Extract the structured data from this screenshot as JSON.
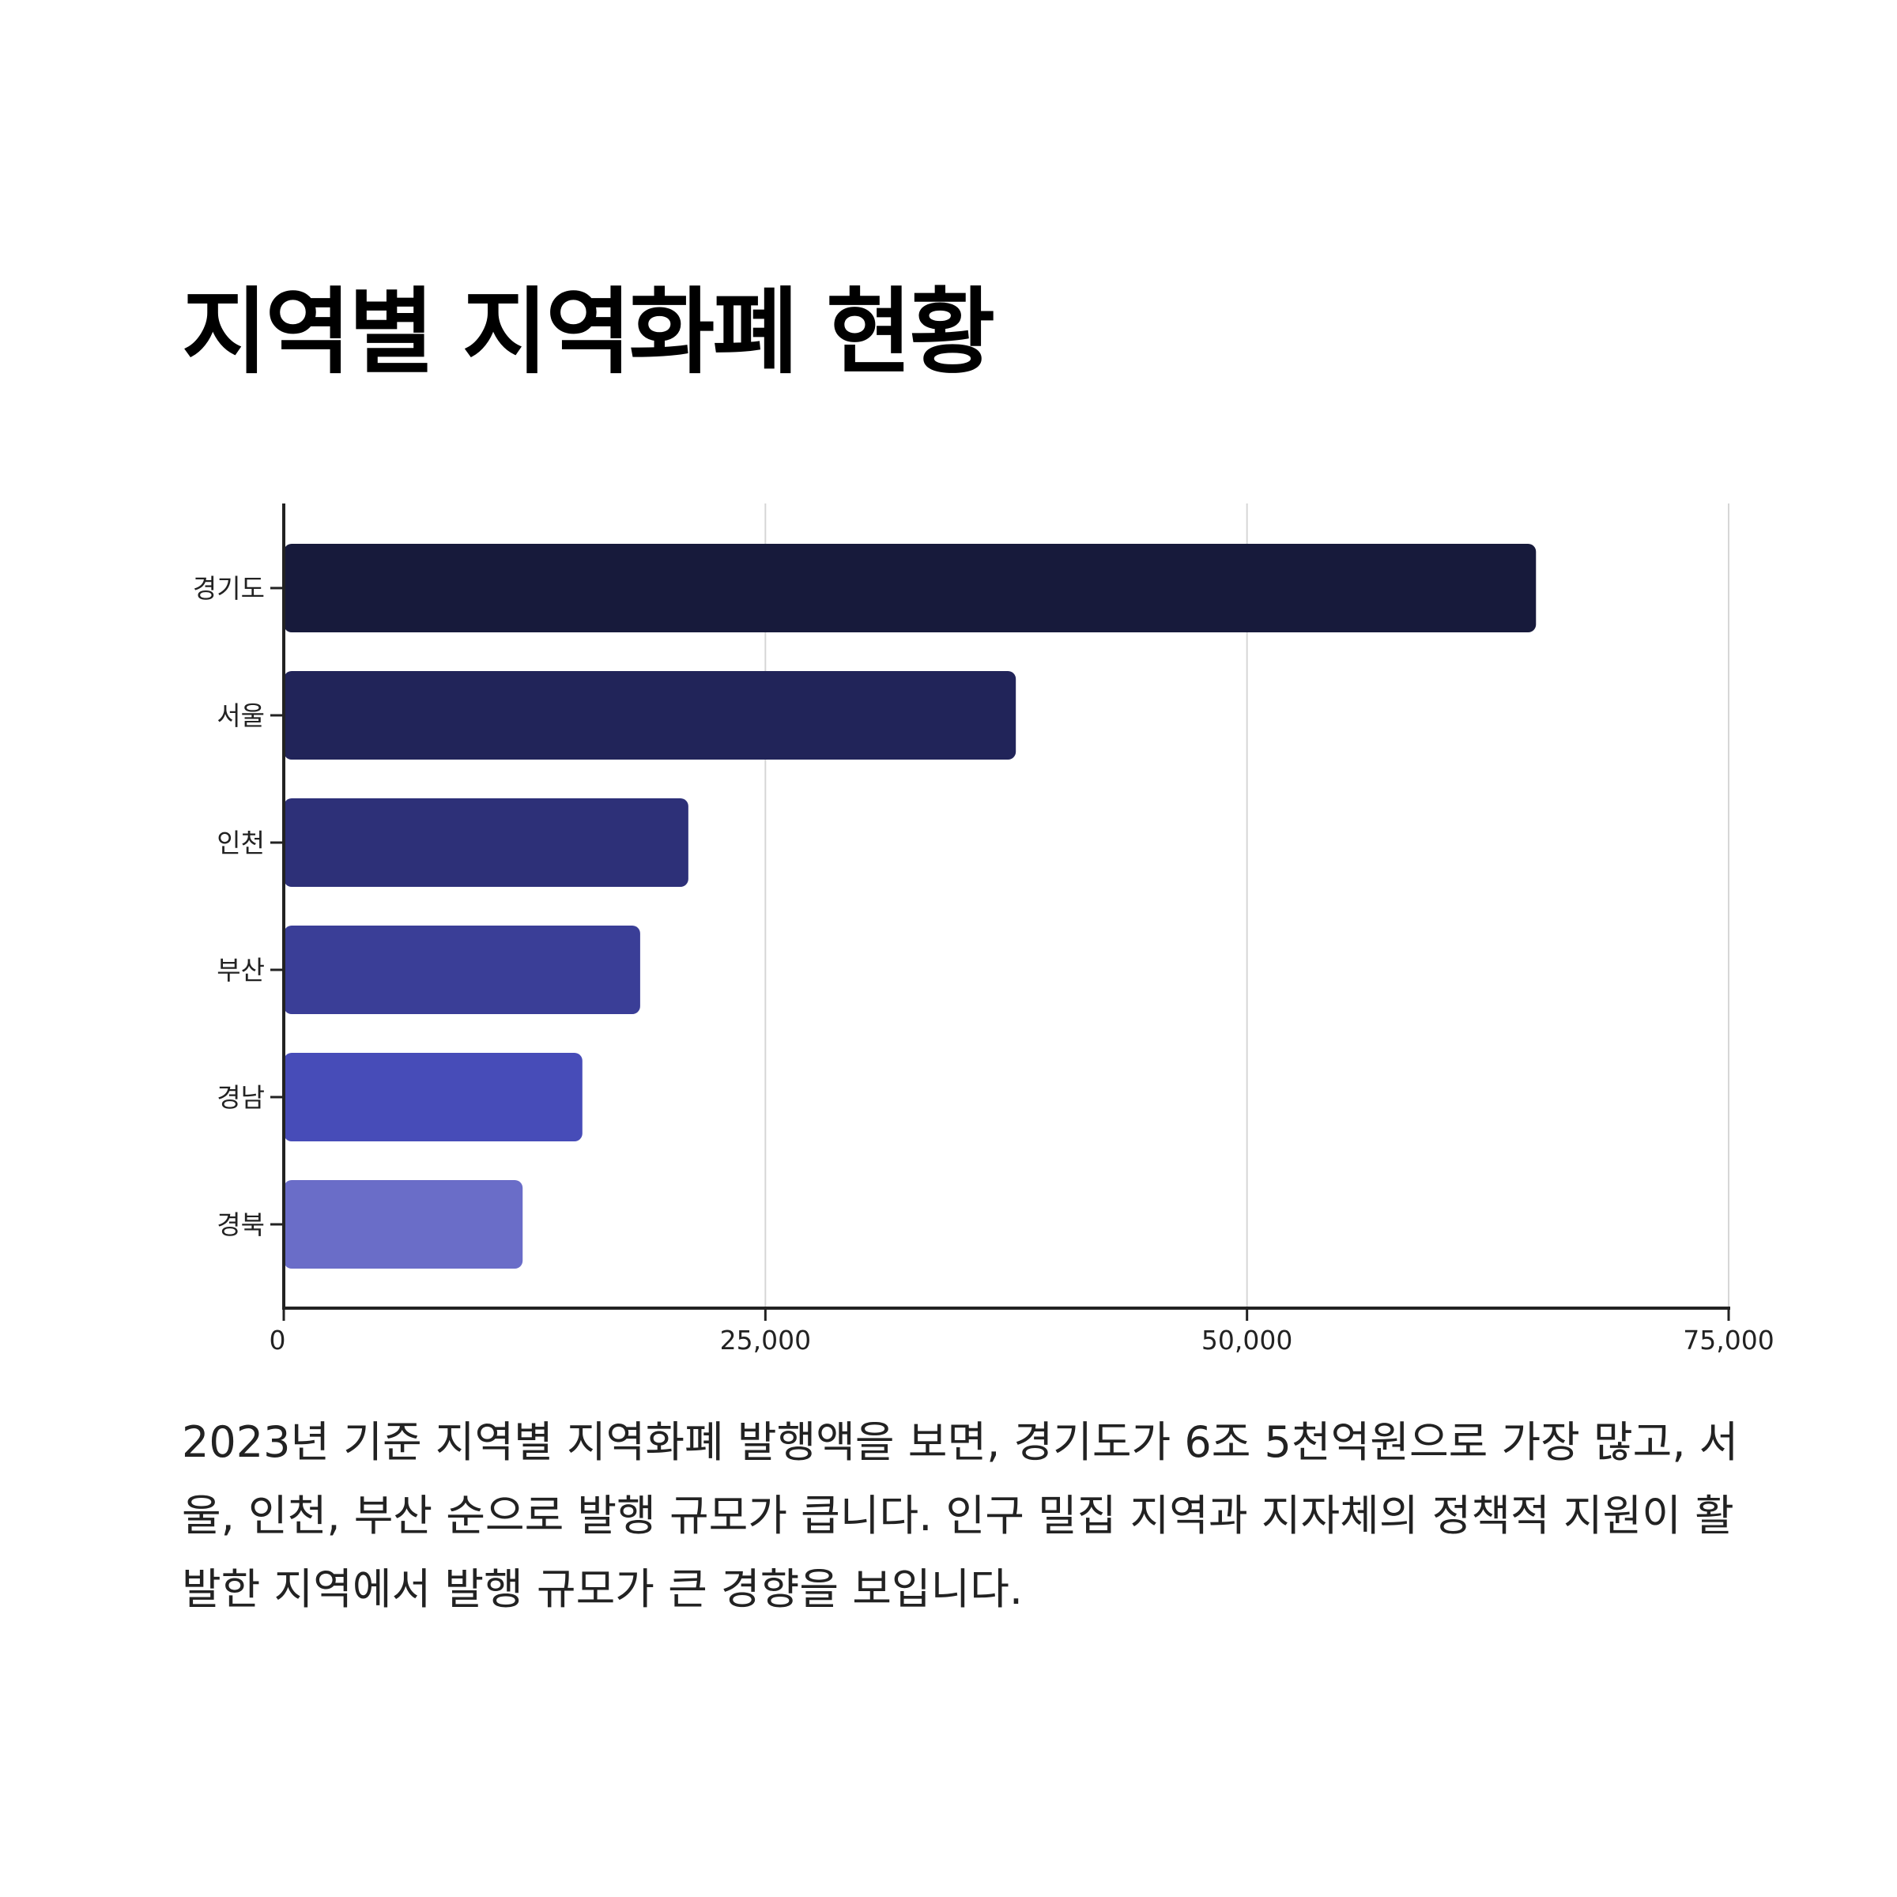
{
  "title": "지역별 지역화폐 현황",
  "description": "2023년 기준 지역별 지역화폐 발행액을 보면, 경기도가 6조 5천억원으로 가장 많고, 서울, 인천, 부산 순으로 발행 규모가 큽니다. 인구 밀집 지역과 지자체의 정책적 지원이 활발한 지역에서 발행 규모가 큰 경향을 보입니다.",
  "chart_data": {
    "type": "bar",
    "orientation": "horizontal",
    "categories": [
      "경기도",
      "서울",
      "인천",
      "부산",
      "경남",
      "경북"
    ],
    "values": [
      65000,
      38000,
      21000,
      18500,
      15500,
      12400
    ],
    "colors": [
      "#171a3b",
      "#212459",
      "#2d3078",
      "#3a3e97",
      "#474cb8",
      "#6a6dc8"
    ],
    "xlim": [
      0,
      75000
    ],
    "xticks": [
      0,
      25000,
      50000,
      75000
    ],
    "xtick_labels": [
      "0",
      "25,000",
      "50,000",
      "75,000"
    ],
    "grid": "vertical",
    "title": "",
    "xlabel": "",
    "ylabel": ""
  }
}
